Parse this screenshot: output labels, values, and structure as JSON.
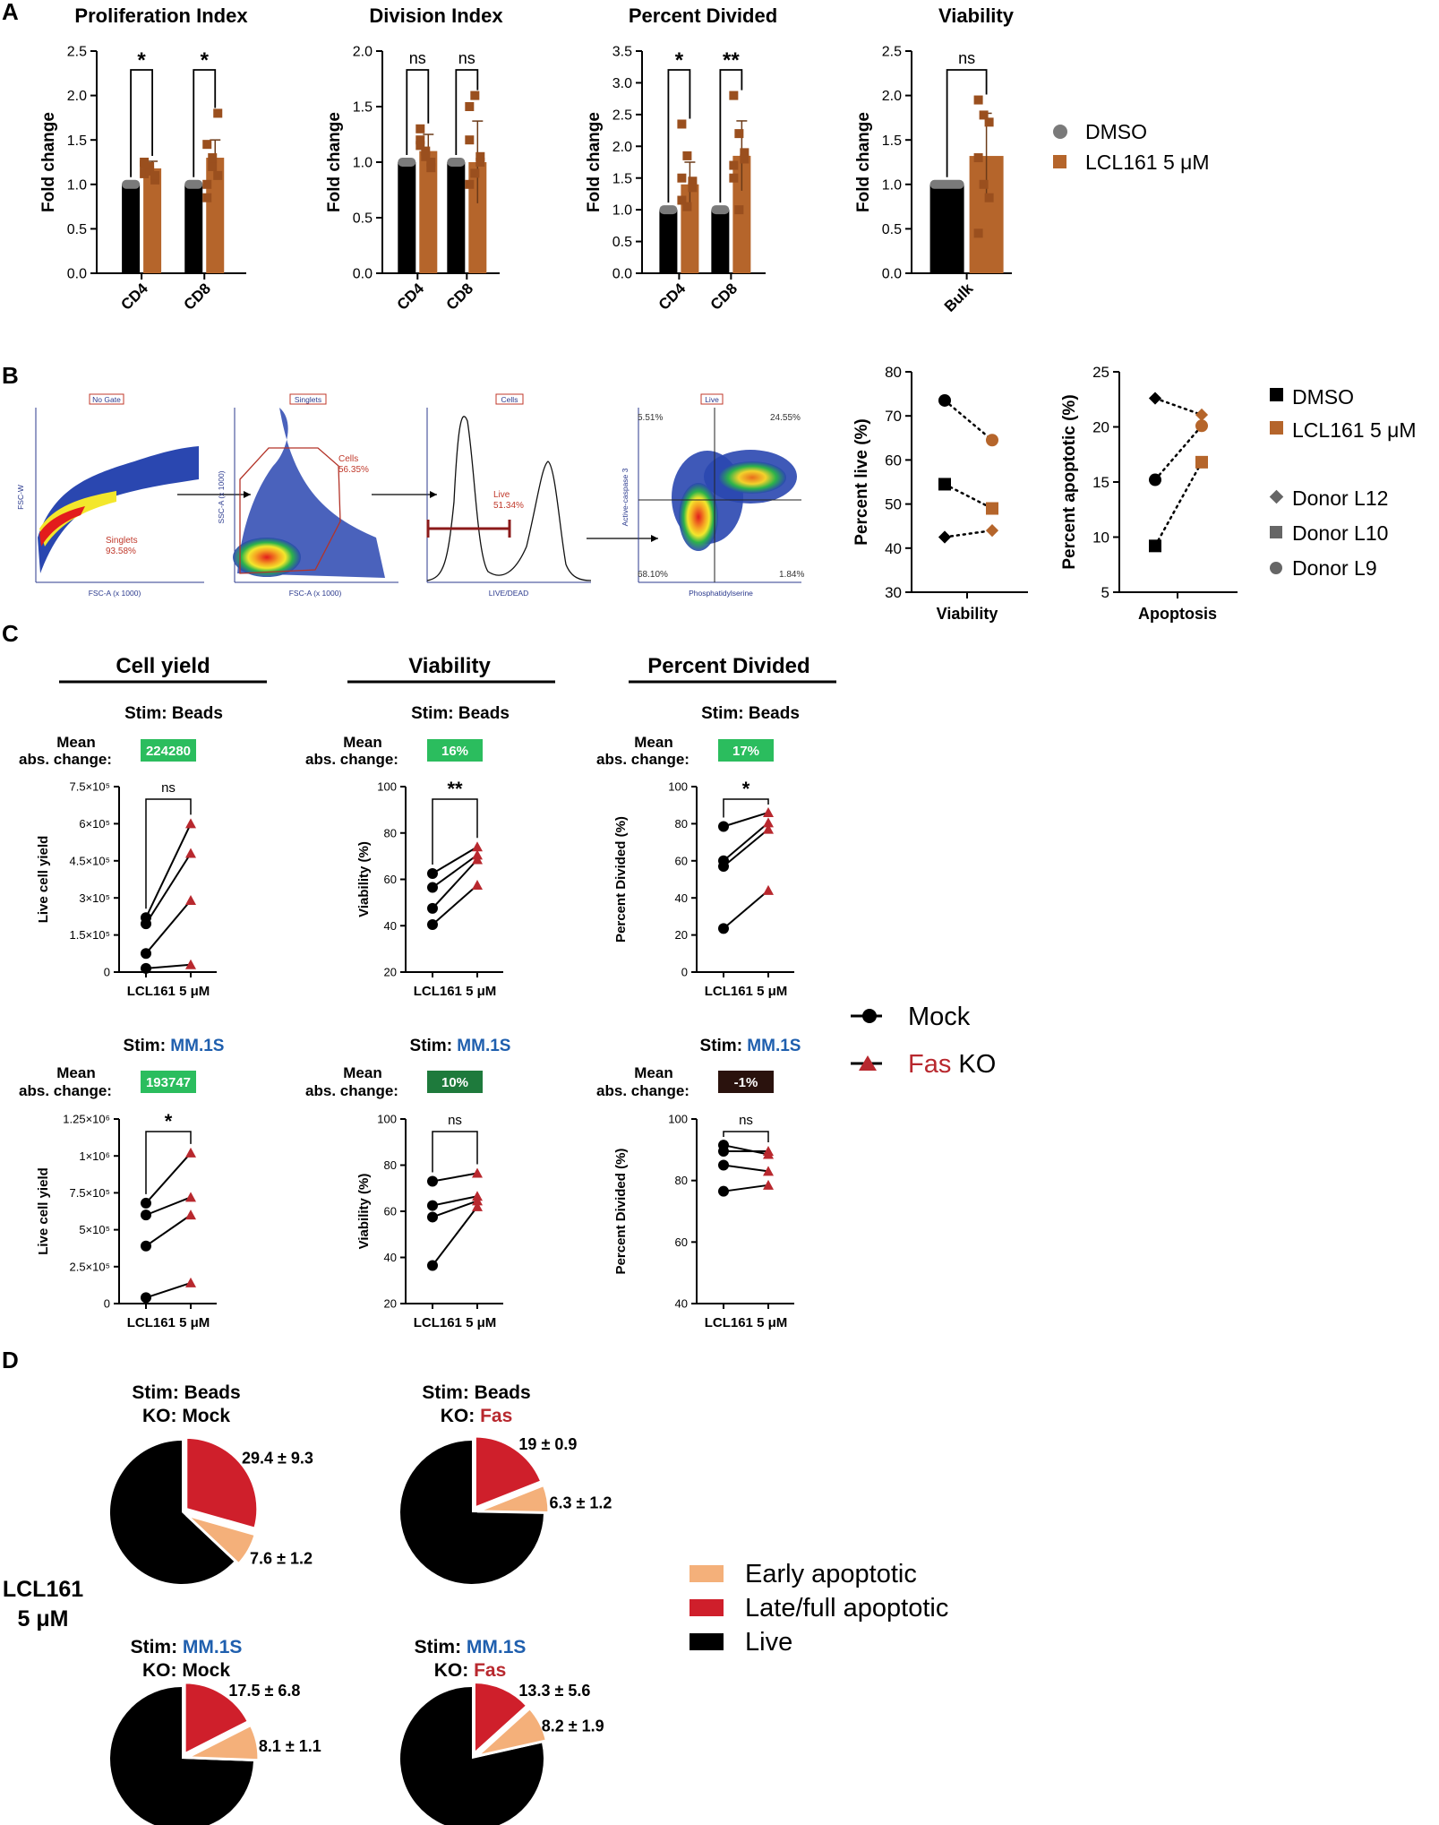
{
  "colors": {
    "black": "#000000",
    "orange": "#b5652b",
    "red": "#b8282e",
    "green": "#2bbd5e",
    "dkgreen": "#1e7a3c",
    "brown": "#2a120d",
    "blue": "#1f5fae",
    "gray": "#7a7a7a",
    "pieRed": "#cf1f2b",
    "pieOrange": "#f4b07a"
  },
  "panels": {
    "A": "A",
    "B": "B",
    "C": "C",
    "D": "D"
  },
  "panelA": {
    "legend": {
      "dmso": "DMSO",
      "lcl": "LCL161 5 μM"
    },
    "charts": [
      {
        "type": "bar",
        "title": "Proliferation Index",
        "ylabel": "Fold change",
        "ylim": [
          0,
          2.5
        ],
        "yticks": [
          "0.0",
          "0.5",
          "1.0",
          "1.5",
          "2.0",
          "2.5"
        ],
        "categories": [
          "CD4",
          "CD8"
        ],
        "series": [
          {
            "name": "DMSO",
            "values": [
              1.0,
              1.0
            ]
          },
          {
            "name": "LCL161 5 μM",
            "values": [
              1.18,
              1.3
            ],
            "sd": [
              0.08,
              0.2
            ]
          }
        ],
        "points": [
          [
            1.12,
            1.2,
            1.05,
            1.25,
            1.15,
            1.1,
            1.22
          ],
          [
            1.0,
            1.2,
            1.8,
            1.45,
            1.3,
            1.1,
            0.85
          ]
        ],
        "sig": [
          "*",
          "*"
        ]
      },
      {
        "type": "bar",
        "title": "Division Index",
        "ylabel": "Fold change",
        "ylim": [
          0,
          2.0
        ],
        "yticks": [
          "0.0",
          "0.5",
          "1.0",
          "1.5",
          "2.0"
        ],
        "categories": [
          "CD4",
          "CD8"
        ],
        "series": [
          {
            "name": "DMSO",
            "values": [
              1.0,
              1.0
            ]
          },
          {
            "name": "LCL161 5 μM",
            "values": [
              1.1,
              1.0
            ],
            "sd": [
              0.15,
              0.37
            ]
          }
        ],
        "points": [
          [
            1.2,
            1.05,
            0.95,
            1.3,
            1.1,
            1.0,
            1.15
          ],
          [
            1.5,
            1.6,
            1.05,
            0.8,
            0.9,
            1.0,
            1.2
          ]
        ],
        "sig": [
          "ns",
          "ns"
        ]
      },
      {
        "type": "bar",
        "title": "Percent Divided",
        "ylabel": "Fold change",
        "ylim": [
          0,
          3.5
        ],
        "yticks": [
          "0.0",
          "0.5",
          "1.0",
          "1.5",
          "2.0",
          "2.5",
          "3.0",
          "3.5"
        ],
        "categories": [
          "CD4",
          "CD8"
        ],
        "series": [
          {
            "name": "DMSO",
            "values": [
              1.0,
              1.0
            ]
          },
          {
            "name": "LCL161 5 μM",
            "values": [
              1.4,
              1.85
            ],
            "sd": [
              0.35,
              0.55
            ]
          }
        ],
        "points": [
          [
            2.35,
            1.85,
            1.45,
            1.15,
            1.05,
            1.35,
            1.5
          ],
          [
            2.8,
            2.2,
            1.9,
            1.5,
            1.0,
            1.8,
            1.7
          ]
        ],
        "sig": [
          "*",
          "**"
        ]
      },
      {
        "type": "bar",
        "title": "Viability",
        "ylabel": "Fold change",
        "ylim": [
          0,
          2.5
        ],
        "yticks": [
          "0.0",
          "0.5",
          "1.0",
          "1.5",
          "2.0",
          "2.5"
        ],
        "categories": [
          "Bulk"
        ],
        "series": [
          {
            "name": "DMSO",
            "values": [
              1.0
            ]
          },
          {
            "name": "LCL161 5 μM",
            "values": [
              1.32
            ],
            "sd": [
              0.48
            ]
          }
        ],
        "points": [
          [
            1.95,
            1.78,
            1.7,
            1.3,
            1.0,
            0.85,
            0.45
          ]
        ],
        "sig": [
          "ns"
        ]
      }
    ]
  },
  "panelB": {
    "flow": {
      "gates": [
        "No Gate",
        "Singlets",
        "Cells",
        "Live"
      ],
      "pop": {
        "singlets_name": "Singlets",
        "singlets_pct": "93.58%",
        "cells_name": "Cells",
        "cells_pct": "56.35%",
        "live_name": "Live",
        "live_pct": "51.34%"
      },
      "axes": {
        "a1x": "FSC-A (x 1000)",
        "a1y": "FSC-W",
        "a2x": "FSC-A (x 1000)",
        "a2y": "SSC-A (x 1000)",
        "a3x": "LIVE/DEAD",
        "a4x": "Phosphatidylserine",
        "a4y": "Active-caspase 3"
      },
      "quadrants": {
        "ul": "5.51%",
        "ur": "24.55%",
        "ll": "68.10%",
        "lr": "1.84%"
      }
    },
    "charts": [
      {
        "type": "scatter",
        "ylabel": "Percent live (%)",
        "xlabel": "Viability",
        "ylim": [
          30,
          80
        ],
        "yticks": [
          "30",
          "40",
          "50",
          "60",
          "70",
          "80"
        ],
        "donors": [
          {
            "name": "L9",
            "marker": "circle",
            "dmso": 73.5,
            "lcl": 64.5
          },
          {
            "name": "L10",
            "marker": "square",
            "dmso": 54.5,
            "lcl": 49
          },
          {
            "name": "L12",
            "marker": "diamond",
            "dmso": 42.5,
            "lcl": 44
          }
        ]
      },
      {
        "type": "scatter",
        "ylabel": "Percent apoptotic (%)",
        "xlabel": "Apoptosis",
        "ylim": [
          5,
          25
        ],
        "yticks": [
          "5",
          "10",
          "15",
          "20",
          "25"
        ],
        "donors": [
          {
            "name": "L9",
            "marker": "circle",
            "dmso": 15.2,
            "lcl": 20.1
          },
          {
            "name": "L10",
            "marker": "square",
            "dmso": 9.2,
            "lcl": 16.8
          },
          {
            "name": "L12",
            "marker": "diamond",
            "dmso": 22.6,
            "lcl": 21.1
          }
        ]
      }
    ],
    "legend": {
      "dmso": "DMSO",
      "lcl": "LCL161 5 μM",
      "d12": "Donor  L12",
      "d10": "Donor  L10",
      "d9": "Donor  L9"
    }
  },
  "panelC": {
    "headers": [
      "Cell yield",
      "Viability",
      "Percent Divided"
    ],
    "stim_prefix": "Stim: ",
    "stim_beads": "Beads",
    "stim_mm": "MM.1S",
    "mean_label1": "Mean",
    "mean_label2": "abs. change:",
    "legend": {
      "mock": "Mock",
      "fas": "Fas",
      "ko": " KO"
    },
    "charts": [
      {
        "type": "line",
        "ylabel": "Live cell yield",
        "xlabel": "LCL161 5 μM",
        "ylim": [
          0,
          750000
        ],
        "yticks": [
          "0",
          "1.5×10⁵",
          "3×10⁵",
          "4.5×10⁵",
          "6×10⁵",
          "7.5×10⁵"
        ],
        "box": "224280",
        "sig": "ns",
        "pairs": [
          [
            220000,
            600000
          ],
          [
            195000,
            480000
          ],
          [
            75000,
            290000
          ],
          [
            15000,
            30000
          ]
        ]
      },
      {
        "type": "line",
        "ylabel": "Viability (%)",
        "xlabel": "LCL161 5 μM",
        "ylim": [
          20,
          100
        ],
        "yticks": [
          "20",
          "40",
          "60",
          "80",
          "100"
        ],
        "box": "16%",
        "sig": "**",
        "pairs": [
          [
            62.5,
            74
          ],
          [
            56.5,
            70.5
          ],
          [
            47.5,
            68.5
          ],
          [
            40.5,
            57.5
          ]
        ]
      },
      {
        "type": "line",
        "ylabel": "Percent Divided (%)",
        "xlabel": "LCL161 5 μM",
        "ylim": [
          0,
          100
        ],
        "yticks": [
          "0",
          "20",
          "40",
          "60",
          "80",
          "100"
        ],
        "box": "17%",
        "sig": "*",
        "pairs": [
          [
            78.5,
            86
          ],
          [
            60,
            80.5
          ],
          [
            57,
            77
          ],
          [
            23.5,
            44
          ]
        ]
      },
      {
        "type": "line",
        "ylabel": "Live cell yield",
        "xlabel": "LCL161 5 μM",
        "ylim": [
          0,
          1250000
        ],
        "yticks": [
          "0",
          "2.5×10⁵",
          "5×10⁵",
          "7.5×10⁵",
          "1×10⁶",
          "1.25×10⁶"
        ],
        "box": "193747",
        "sig": "*",
        "pairs": [
          [
            680000,
            1020000
          ],
          [
            600000,
            720000
          ],
          [
            390000,
            600000
          ],
          [
            40000,
            140000
          ]
        ]
      },
      {
        "type": "line",
        "ylabel": "Viability (%)",
        "xlabel": "LCL161 5 μM",
        "ylim": [
          20,
          100
        ],
        "yticks": [
          "20",
          "40",
          "60",
          "80",
          "100"
        ],
        "box": "10%",
        "sig": "ns",
        "pairs": [
          [
            73,
            76.5
          ],
          [
            62.5,
            66.5
          ],
          [
            57.5,
            64.5
          ],
          [
            36.5,
            62
          ]
        ]
      },
      {
        "type": "line",
        "ylabel": "Percent Divided (%)",
        "xlabel": "LCL161 5 μM",
        "ylim": [
          40,
          100
        ],
        "yticks": [
          "40",
          "60",
          "80",
          "100"
        ],
        "box": "-1%",
        "sig": "ns",
        "pairs": [
          [
            91.5,
            88.5
          ],
          [
            89.5,
            89.5
          ],
          [
            85,
            83
          ],
          [
            76.5,
            78.5
          ]
        ]
      }
    ]
  },
  "panelD": {
    "side_label1": "LCL161",
    "side_label2": "5 μM",
    "stim_prefix": "Stim: ",
    "ko_prefix": "KO: ",
    "stim_beads": "Beads",
    "stim_mm": "MM.1S",
    "ko_mock": "Mock",
    "ko_fas": "Fas",
    "legend": {
      "early": "Early apoptotic",
      "late": "Late/full apoptotic",
      "live": "Live"
    },
    "pies": [
      {
        "type": "pie",
        "late": 29.4,
        "early": 7.6,
        "late_label": "29.4 ± 9.3",
        "early_label": "7.6 ± 1.2"
      },
      {
        "type": "pie",
        "late": 19,
        "early": 6.3,
        "late_label": "19 ± 0.9",
        "early_label": "6.3 ± 1.2"
      },
      {
        "type": "pie",
        "late": 17.5,
        "early": 8.1,
        "late_label": "17.5 ± 6.8",
        "early_label": "8.1 ± 1.1"
      },
      {
        "type": "pie",
        "late": 13.3,
        "early": 8.2,
        "late_label": "13.3 ± 5.6",
        "early_label": "8.2 ± 1.9"
      }
    ]
  }
}
